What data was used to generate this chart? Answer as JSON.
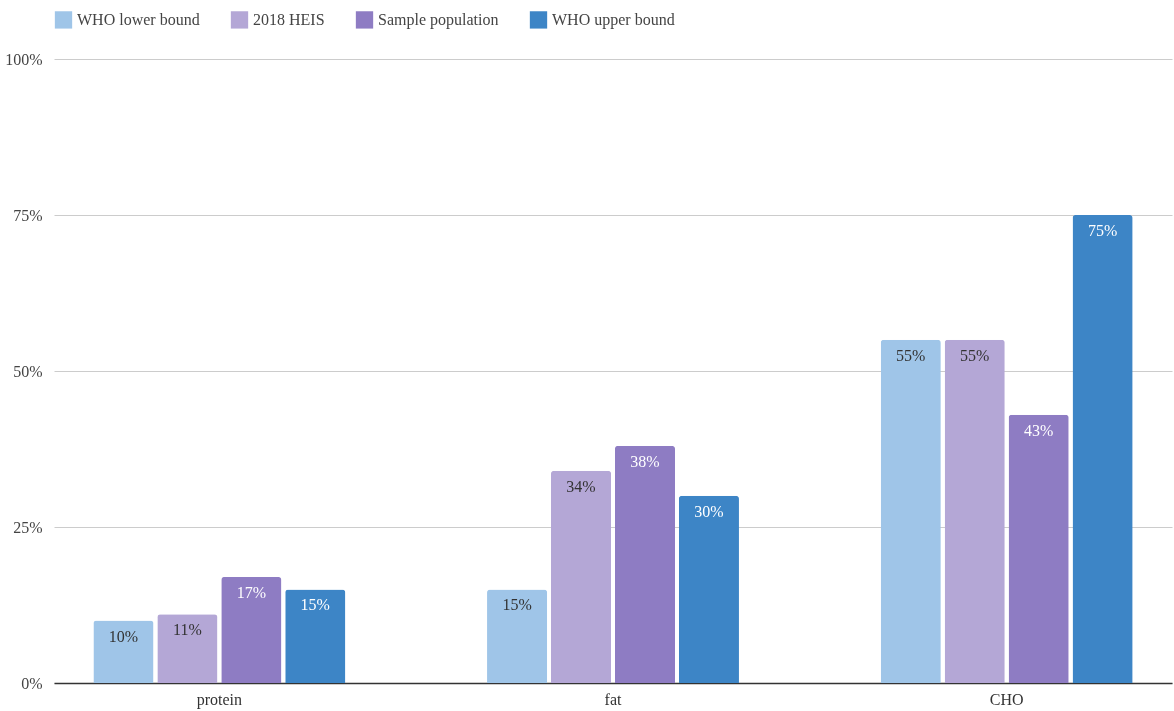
{
  "chart_data": {
    "type": "bar",
    "categories": [
      "protein",
      "fat",
      "CHO"
    ],
    "series": [
      {
        "name": "WHO lower bound",
        "color": "#9fc5e8",
        "values": [
          10,
          15,
          55
        ],
        "value_labels": [
          "10%",
          "15%",
          "55%"
        ]
      },
      {
        "name": "2018 HEIS",
        "color": "#b4a7d6",
        "values": [
          11,
          34,
          55
        ],
        "value_labels": [
          "11%",
          "34%",
          "55%"
        ]
      },
      {
        "name": "Sample population",
        "color": "#8e7cc3",
        "values": [
          17,
          38,
          43
        ],
        "value_labels": [
          "17%",
          "38%",
          "43%"
        ]
      },
      {
        "name": "WHO upper bound",
        "color": "#3d85c6",
        "values": [
          15,
          30,
          75
        ],
        "value_labels": [
          "15%",
          "30%",
          "75%"
        ]
      }
    ],
    "ylim": [
      0,
      100
    ],
    "yticks": [
      {
        "value": 0,
        "label": "0%"
      },
      {
        "value": 25,
        "label": "25%"
      },
      {
        "value": 50,
        "label": "50%"
      },
      {
        "value": 75,
        "label": "75%"
      },
      {
        "value": 100,
        "label": "100%"
      }
    ],
    "grid": "y",
    "legend": "top"
  }
}
